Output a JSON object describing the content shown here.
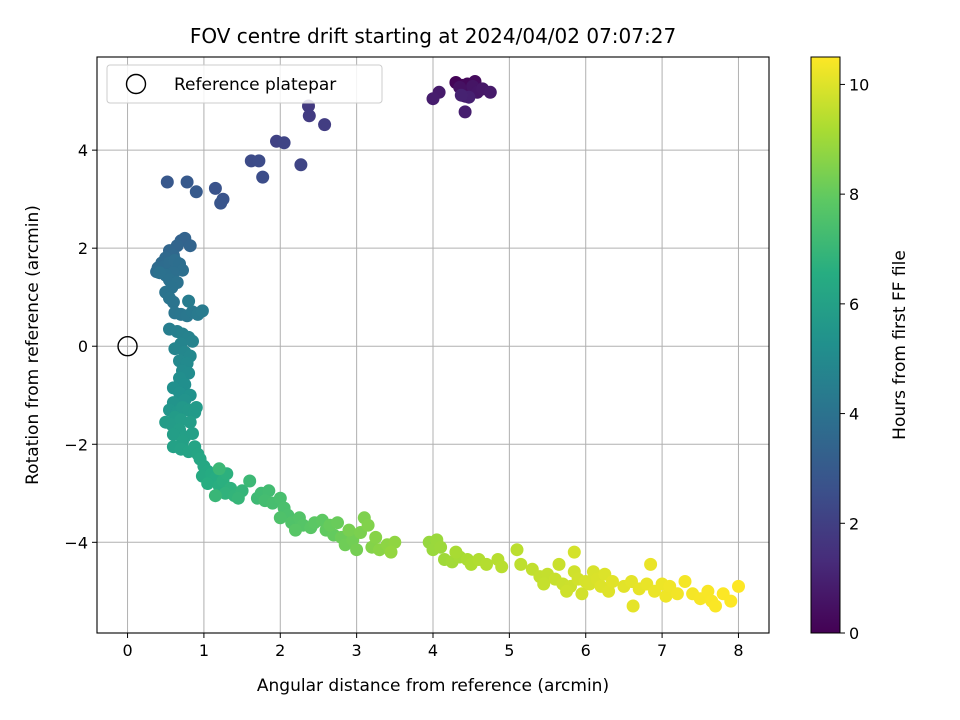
{
  "chart_data": {
    "type": "scatter",
    "title": "FOV centre drift starting at 2024/04/02 07:07:27",
    "xlabel": "Angular distance from reference (arcmin)",
    "ylabel": "Rotation from reference (arcmin)",
    "colorbar_label": "Hours from first FF file",
    "xlim": [
      -0.4,
      8.4
    ],
    "ylim": [
      -5.85,
      5.9
    ],
    "clim": [
      0,
      10.5
    ],
    "xticks": [
      0,
      1,
      2,
      3,
      4,
      5,
      6,
      7,
      8
    ],
    "yticks": [
      -4,
      -2,
      0,
      2,
      4
    ],
    "cticks": [
      0,
      2,
      4,
      6,
      8,
      10
    ],
    "grid": true,
    "colormap": "viridis",
    "legend": {
      "placement": "top-left",
      "entries": [
        "Reference platepar"
      ]
    },
    "reference_point": {
      "x": 0,
      "y": 0,
      "label": "Reference platepar"
    },
    "points": [
      [
        4.3,
        5.38,
        0.1
      ],
      [
        4.38,
        5.32,
        0.15
      ],
      [
        4.45,
        5.35,
        0.2
      ],
      [
        4.5,
        5.25,
        0.25
      ],
      [
        4.55,
        5.4,
        0.3
      ],
      [
        4.4,
        5.2,
        0.35
      ],
      [
        4.48,
        5.15,
        0.4
      ],
      [
        4.6,
        5.22,
        0.45
      ],
      [
        4.35,
        5.28,
        0.5
      ],
      [
        4.42,
        5.1,
        0.55
      ],
      [
        4.52,
        5.3,
        0.6
      ],
      [
        4.58,
        5.18,
        0.65
      ],
      [
        4.65,
        5.25,
        0.7
      ],
      [
        4.75,
        5.18,
        0.75
      ],
      [
        4.08,
        5.18,
        0.8
      ],
      [
        4.0,
        5.05,
        0.85
      ],
      [
        4.42,
        4.78,
        0.9
      ],
      [
        4.47,
        5.08,
        0.95
      ],
      [
        4.37,
        5.12,
        1.0
      ],
      [
        2.37,
        4.9,
        1.8
      ],
      [
        2.38,
        4.7,
        1.85
      ],
      [
        2.58,
        4.52,
        1.9
      ],
      [
        1.95,
        4.18,
        2.1
      ],
      [
        2.05,
        4.15,
        2.15
      ],
      [
        2.27,
        3.7,
        2.2
      ],
      [
        1.62,
        3.78,
        2.4
      ],
      [
        1.72,
        3.78,
        2.45
      ],
      [
        1.77,
        3.45,
        2.5
      ],
      [
        1.15,
        3.22,
        2.7
      ],
      [
        1.25,
        3.0,
        2.75
      ],
      [
        1.22,
        2.92,
        2.8
      ],
      [
        0.52,
        3.35,
        2.9
      ],
      [
        0.78,
        3.35,
        2.95
      ],
      [
        0.9,
        3.15,
        3.0
      ],
      [
        0.7,
        2.15,
        3.3
      ],
      [
        0.75,
        2.2,
        3.35
      ],
      [
        0.82,
        2.05,
        3.4
      ],
      [
        0.65,
        2.05,
        3.45
      ],
      [
        0.55,
        1.95,
        3.5
      ],
      [
        0.6,
        1.85,
        3.55
      ],
      [
        0.5,
        1.8,
        3.6
      ],
      [
        0.45,
        1.7,
        3.65
      ],
      [
        0.4,
        1.6,
        3.7
      ],
      [
        0.38,
        1.52,
        3.72
      ],
      [
        0.48,
        1.62,
        3.75
      ],
      [
        0.55,
        1.7,
        3.78
      ],
      [
        0.62,
        1.75,
        3.8
      ],
      [
        0.68,
        1.68,
        3.82
      ],
      [
        0.72,
        1.55,
        3.85
      ],
      [
        0.6,
        1.5,
        3.87
      ],
      [
        0.5,
        1.45,
        3.9
      ],
      [
        0.42,
        1.5,
        3.92
      ],
      [
        0.55,
        1.35,
        3.95
      ],
      [
        0.65,
        1.3,
        3.98
      ],
      [
        0.58,
        1.2,
        4.0
      ],
      [
        0.5,
        1.1,
        4.02
      ],
      [
        0.55,
        0.98,
        4.05
      ],
      [
        0.6,
        0.9,
        4.08
      ],
      [
        0.62,
        0.68,
        4.1
      ],
      [
        0.7,
        0.65,
        4.15
      ],
      [
        0.78,
        0.62,
        4.2
      ],
      [
        0.85,
        0.7,
        4.25
      ],
      [
        0.92,
        0.65,
        4.3
      ],
      [
        0.98,
        0.72,
        4.35
      ],
      [
        0.8,
        0.92,
        4.4
      ],
      [
        0.55,
        0.35,
        4.5
      ],
      [
        0.65,
        0.3,
        4.55
      ],
      [
        0.72,
        0.25,
        4.6
      ],
      [
        0.8,
        0.18,
        4.65
      ],
      [
        0.85,
        0.1,
        4.7
      ],
      [
        0.7,
        0.05,
        4.75
      ],
      [
        0.62,
        -0.05,
        4.8
      ],
      [
        0.75,
        -0.12,
        4.85
      ],
      [
        0.82,
        -0.2,
        4.9
      ],
      [
        0.68,
        -0.3,
        4.95
      ],
      [
        0.78,
        -0.35,
        5.0
      ],
      [
        0.72,
        -0.5,
        5.05
      ],
      [
        0.8,
        -0.55,
        5.1
      ],
      [
        0.68,
        -0.65,
        5.15
      ],
      [
        0.75,
        -0.78,
        5.2
      ],
      [
        0.6,
        -0.85,
        5.25
      ],
      [
        0.68,
        -0.95,
        5.3
      ],
      [
        0.82,
        -1.0,
        5.35
      ],
      [
        0.75,
        -1.1,
        5.4
      ],
      [
        0.6,
        -1.15,
        5.45
      ],
      [
        0.55,
        -1.3,
        5.5
      ],
      [
        0.65,
        -1.35,
        5.55
      ],
      [
        0.72,
        -1.25,
        5.6
      ],
      [
        0.8,
        -1.3,
        5.65
      ],
      [
        0.88,
        -1.35,
        5.7
      ],
      [
        0.9,
        -1.25,
        5.72
      ],
      [
        0.62,
        -1.45,
        5.75
      ],
      [
        0.5,
        -1.55,
        5.78
      ],
      [
        0.58,
        -1.6,
        5.8
      ],
      [
        0.7,
        -1.5,
        5.82
      ],
      [
        0.82,
        -1.55,
        5.85
      ],
      [
        0.68,
        -1.7,
        5.88
      ],
      [
        0.6,
        -1.8,
        5.9
      ],
      [
        0.75,
        -1.85,
        5.92
      ],
      [
        0.85,
        -1.78,
        5.95
      ],
      [
        0.72,
        -1.95,
        5.98
      ],
      [
        0.6,
        -2.05,
        6.0
      ],
      [
        0.7,
        -2.1,
        6.05
      ],
      [
        0.8,
        -2.15,
        6.1
      ],
      [
        0.88,
        -2.05,
        6.15
      ],
      [
        0.92,
        -2.2,
        6.2
      ],
      [
        0.95,
        -2.3,
        6.25
      ],
      [
        1.0,
        -2.45,
        6.3
      ],
      [
        1.05,
        -2.55,
        6.35
      ],
      [
        0.98,
        -2.65,
        6.4
      ],
      [
        1.1,
        -2.6,
        6.45
      ],
      [
        1.15,
        -2.7,
        6.5
      ],
      [
        1.05,
        -2.8,
        6.55
      ],
      [
        1.2,
        -2.85,
        6.6
      ],
      [
        1.25,
        -2.75,
        6.65
      ],
      [
        1.3,
        -2.6,
        6.7
      ],
      [
        1.35,
        -2.9,
        6.75
      ],
      [
        1.28,
        -3.0,
        6.8
      ],
      [
        1.4,
        -3.05,
        6.85
      ],
      [
        1.5,
        -2.95,
        6.9
      ],
      [
        1.45,
        -3.1,
        6.95
      ],
      [
        1.15,
        -3.05,
        7.0
      ],
      [
        1.2,
        -2.5,
        7.05
      ],
      [
        1.6,
        -2.75,
        7.1
      ],
      [
        1.7,
        -3.1,
        7.15
      ],
      [
        1.75,
        -3.0,
        7.2
      ],
      [
        1.85,
        -2.95,
        7.25
      ],
      [
        1.8,
        -3.15,
        7.3
      ],
      [
        1.9,
        -3.2,
        7.35
      ],
      [
        2.0,
        -3.1,
        7.4
      ],
      [
        2.05,
        -3.3,
        7.45
      ],
      [
        2.1,
        -3.45,
        7.5
      ],
      [
        2.0,
        -3.5,
        7.55
      ],
      [
        2.15,
        -3.6,
        7.6
      ],
      [
        2.25,
        -3.5,
        7.65
      ],
      [
        2.3,
        -3.65,
        7.7
      ],
      [
        2.2,
        -3.75,
        7.75
      ],
      [
        2.4,
        -3.7,
        7.8
      ],
      [
        2.45,
        -3.6,
        7.85
      ],
      [
        2.55,
        -3.55,
        7.9
      ],
      [
        2.6,
        -3.75,
        7.95
      ],
      [
        2.7,
        -3.85,
        8.0
      ],
      [
        2.65,
        -3.65,
        8.05
      ],
      [
        2.75,
        -3.6,
        8.1
      ],
      [
        2.8,
        -3.9,
        8.15
      ],
      [
        2.85,
        -4.05,
        8.2
      ],
      [
        2.95,
        -3.95,
        8.25
      ],
      [
        3.0,
        -4.15,
        8.3
      ],
      [
        2.9,
        -3.75,
        8.35
      ],
      [
        3.05,
        -3.8,
        8.4
      ],
      [
        3.1,
        -3.5,
        8.45
      ],
      [
        3.15,
        -3.65,
        8.5
      ],
      [
        3.2,
        -4.1,
        8.55
      ],
      [
        3.25,
        -3.9,
        8.6
      ],
      [
        3.3,
        -4.15,
        8.65
      ],
      [
        3.4,
        -4.05,
        8.7
      ],
      [
        3.5,
        -4.0,
        8.75
      ],
      [
        3.45,
        -4.2,
        8.8
      ],
      [
        3.95,
        -4.0,
        8.85
      ],
      [
        4.0,
        -4.15,
        8.9
      ],
      [
        4.05,
        -3.95,
        8.92
      ],
      [
        4.1,
        -4.1,
        8.95
      ],
      [
        4.15,
        -4.35,
        9.0
      ],
      [
        4.25,
        -4.4,
        9.05
      ],
      [
        4.35,
        -4.3,
        9.1
      ],
      [
        4.3,
        -4.2,
        9.15
      ],
      [
        4.45,
        -4.35,
        9.2
      ],
      [
        4.5,
        -4.45,
        9.25
      ],
      [
        4.6,
        -4.35,
        9.3
      ],
      [
        4.7,
        -4.45,
        9.35
      ],
      [
        4.85,
        -4.35,
        9.4
      ],
      [
        4.9,
        -4.5,
        9.42
      ],
      [
        5.1,
        -4.15,
        9.45
      ],
      [
        5.15,
        -4.45,
        9.5
      ],
      [
        5.3,
        -4.55,
        9.55
      ],
      [
        5.4,
        -4.7,
        9.58
      ],
      [
        5.5,
        -4.65,
        9.6
      ],
      [
        5.45,
        -4.85,
        9.62
      ],
      [
        5.6,
        -4.75,
        9.65
      ],
      [
        5.65,
        -4.45,
        9.68
      ],
      [
        5.7,
        -4.85,
        9.7
      ],
      [
        5.8,
        -4.9,
        9.72
      ],
      [
        5.75,
        -5.0,
        9.75
      ],
      [
        5.85,
        -4.6,
        9.78
      ],
      [
        5.9,
        -4.75,
        9.8
      ],
      [
        5.95,
        -5.05,
        9.82
      ],
      [
        5.85,
        -4.2,
        9.85
      ],
      [
        6.0,
        -4.8,
        9.88
      ],
      [
        6.05,
        -4.85,
        9.9
      ],
      [
        6.1,
        -4.6,
        9.92
      ],
      [
        6.15,
        -4.75,
        9.95
      ],
      [
        6.25,
        -4.65,
        9.98
      ],
      [
        6.2,
        -4.9,
        10.0
      ],
      [
        6.3,
        -5.0,
        10.02
      ],
      [
        6.35,
        -4.8,
        10.05
      ],
      [
        6.5,
        -4.9,
        10.08
      ],
      [
        6.6,
        -4.8,
        10.1
      ],
      [
        6.62,
        -5.3,
        10.12
      ],
      [
        6.7,
        -4.95,
        10.15
      ],
      [
        6.8,
        -4.85,
        10.18
      ],
      [
        6.85,
        -4.45,
        10.2
      ],
      [
        6.9,
        -5.0,
        10.22
      ],
      [
        7.0,
        -4.85,
        10.25
      ],
      [
        7.05,
        -5.1,
        10.28
      ],
      [
        7.1,
        -4.9,
        10.3
      ],
      [
        7.2,
        -5.05,
        10.32
      ],
      [
        7.3,
        -4.8,
        10.35
      ],
      [
        7.4,
        -5.05,
        10.38
      ],
      [
        7.5,
        -5.15,
        10.4
      ],
      [
        7.6,
        -5.0,
        10.42
      ],
      [
        7.65,
        -5.2,
        10.44
      ],
      [
        7.7,
        -5.3,
        10.46
      ],
      [
        7.8,
        -5.05,
        10.48
      ],
      [
        7.9,
        -5.2,
        10.49
      ],
      [
        8.0,
        -4.9,
        10.5
      ]
    ]
  }
}
